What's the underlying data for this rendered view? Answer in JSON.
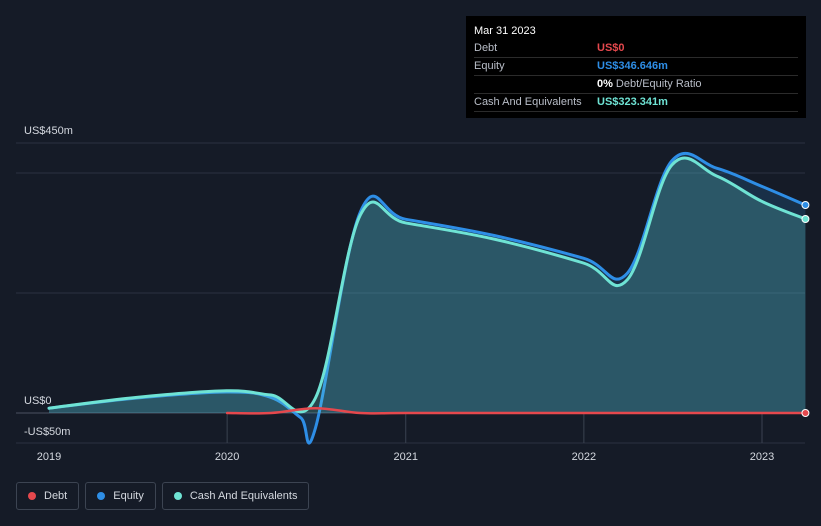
{
  "tooltip": {
    "date": "Mar 31 2023",
    "debt_label": "Debt",
    "debt_value": "US$0",
    "equity_label": "Equity",
    "equity_value": "US$346.646m",
    "ratio_pct": "0%",
    "ratio_text": "Debt/Equity Ratio",
    "cash_label": "Cash And Equivalents",
    "cash_value": "US$323.341m"
  },
  "colors": {
    "debt": "#e5484d",
    "equity": "#2e8ee6",
    "cash": "#6fe3d4"
  },
  "legend": [
    {
      "name": "Debt",
      "color": "#e5484d"
    },
    {
      "name": "Equity",
      "color": "#2e8ee6"
    },
    {
      "name": "Cash And Equivalents",
      "color": "#6fe3d4"
    }
  ],
  "chart_data": {
    "type": "area",
    "y_tick_labels": [
      "US$450m",
      "US$0",
      "-US$50m"
    ],
    "y_ticks": [
      450,
      0,
      -50
    ],
    "ylim": [
      -50,
      450
    ],
    "x_ticks": [
      "2019",
      "2020",
      "2021",
      "2022",
      "2023"
    ],
    "xlim": [
      "2019-01-01",
      "2023-03-31"
    ],
    "grid": true,
    "legend_position": "bottom-left",
    "series": [
      {
        "name": "Debt",
        "points": [
          [
            "2020-01-01",
            0
          ],
          [
            "2020-03-31",
            0
          ],
          [
            "2020-06-30",
            8
          ],
          [
            "2020-09-30",
            0
          ],
          [
            "2020-12-31",
            0
          ],
          [
            "2021-06-30",
            0
          ],
          [
            "2021-12-31",
            0
          ],
          [
            "2022-06-30",
            0
          ],
          [
            "2022-12-31",
            0
          ],
          [
            "2023-03-31",
            0
          ]
        ]
      },
      {
        "name": "Equity",
        "points": [
          [
            "2019-01-01",
            8
          ],
          [
            "2019-06-30",
            25
          ],
          [
            "2019-12-31",
            35
          ],
          [
            "2020-03-31",
            26
          ],
          [
            "2020-05-31",
            -8
          ],
          [
            "2020-06-30",
            -25
          ],
          [
            "2020-09-30",
            335
          ],
          [
            "2020-12-31",
            323
          ],
          [
            "2021-06-30",
            296
          ],
          [
            "2021-12-31",
            258
          ],
          [
            "2022-03-31",
            233
          ],
          [
            "2022-06-30",
            420
          ],
          [
            "2022-09-30",
            408
          ],
          [
            "2022-12-31",
            378
          ],
          [
            "2023-03-31",
            346.646
          ]
        ]
      },
      {
        "name": "Cash And Equivalents",
        "points": [
          [
            "2019-01-01",
            8
          ],
          [
            "2019-06-30",
            26
          ],
          [
            "2019-12-31",
            37
          ],
          [
            "2020-03-31",
            30
          ],
          [
            "2020-06-30",
            25
          ],
          [
            "2020-09-30",
            330
          ],
          [
            "2020-12-31",
            317
          ],
          [
            "2021-06-30",
            290
          ],
          [
            "2021-12-31",
            250
          ],
          [
            "2022-03-31",
            222
          ],
          [
            "2022-06-30",
            413
          ],
          [
            "2022-09-30",
            395
          ],
          [
            "2022-12-31",
            353
          ],
          [
            "2023-03-31",
            323.341
          ]
        ]
      }
    ]
  }
}
